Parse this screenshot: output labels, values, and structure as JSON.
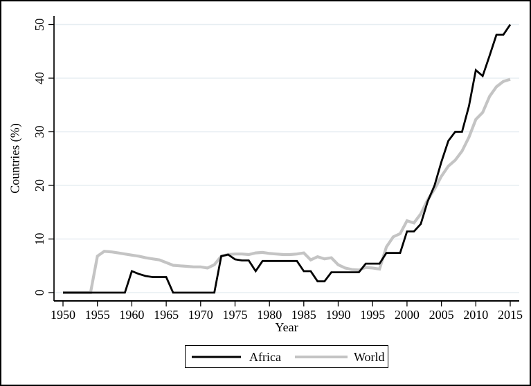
{
  "chart_data": {
    "type": "line",
    "title": "",
    "xlabel": "Year",
    "ylabel": "Countries (%)",
    "x": [
      1950,
      1951,
      1952,
      1953,
      1954,
      1955,
      1956,
      1957,
      1958,
      1959,
      1960,
      1961,
      1962,
      1963,
      1964,
      1965,
      1966,
      1967,
      1968,
      1969,
      1970,
      1971,
      1972,
      1973,
      1974,
      1975,
      1976,
      1977,
      1978,
      1979,
      1980,
      1981,
      1982,
      1983,
      1984,
      1985,
      1986,
      1987,
      1988,
      1989,
      1990,
      1991,
      1992,
      1993,
      1994,
      1995,
      1996,
      1997,
      1998,
      1999,
      2000,
      2001,
      2002,
      2003,
      2004,
      2005,
      2006,
      2007,
      2008,
      2009,
      2010,
      2011,
      2012,
      2013,
      2014,
      2015
    ],
    "series": [
      {
        "name": "Africa",
        "color": "#000000",
        "width": 2.8,
        "values": [
          0,
          0,
          0,
          0,
          0,
          0,
          0,
          0,
          0,
          0,
          4,
          3.5,
          3.1,
          2.9,
          2.9,
          2.9,
          0,
          0,
          0,
          0,
          0,
          0,
          0,
          6.8,
          7.1,
          6.2,
          6,
          6,
          4,
          5.9,
          5.9,
          5.9,
          5.9,
          5.9,
          5.9,
          4,
          4,
          2.1,
          2.1,
          3.8,
          3.8,
          3.8,
          3.8,
          3.8,
          5.4,
          5.4,
          5.4,
          7.4,
          7.4,
          7.4,
          11.4,
          11.4,
          12.8,
          17,
          20,
          24.4,
          28.3,
          30,
          30,
          34.8,
          41.5,
          40.4,
          44.2,
          48.1,
          48.1,
          50
        ]
      },
      {
        "name": "World",
        "color": "#c4c4c4",
        "width": 4.2,
        "values": [
          0,
          0,
          0,
          0,
          0,
          6.8,
          7.7,
          7.6,
          7.4,
          7.2,
          7,
          6.8,
          6.5,
          6.3,
          6.1,
          5.6,
          5.1,
          5,
          4.9,
          4.8,
          4.8,
          4.6,
          5.2,
          6.8,
          7.1,
          7.2,
          7.2,
          7.1,
          7.4,
          7.5,
          7.3,
          7.2,
          7.1,
          7.1,
          7.2,
          7.4,
          6.1,
          6.7,
          6.3,
          6.5,
          5.2,
          4.6,
          4.3,
          4.2,
          4.7,
          4.6,
          4.4,
          8.5,
          10.4,
          11,
          13.4,
          13,
          14.7,
          17.3,
          19.3,
          21.7,
          23.6,
          24.7,
          26.4,
          29,
          32.3,
          33.6,
          36.6,
          38.4,
          39.4,
          39.8
        ]
      }
    ],
    "x_ticks": [
      1950,
      1955,
      1960,
      1965,
      1970,
      1975,
      1980,
      1985,
      1990,
      1995,
      2000,
      2005,
      2010,
      2015
    ],
    "y_ticks": [
      0,
      10,
      20,
      30,
      40,
      50
    ],
    "xlim": [
      1950,
      2015
    ],
    "ylim": [
      0,
      50
    ],
    "grid": true,
    "grid_color": "#e7eef2",
    "axis_color": "#000000",
    "legend_position": "bottom-center"
  }
}
